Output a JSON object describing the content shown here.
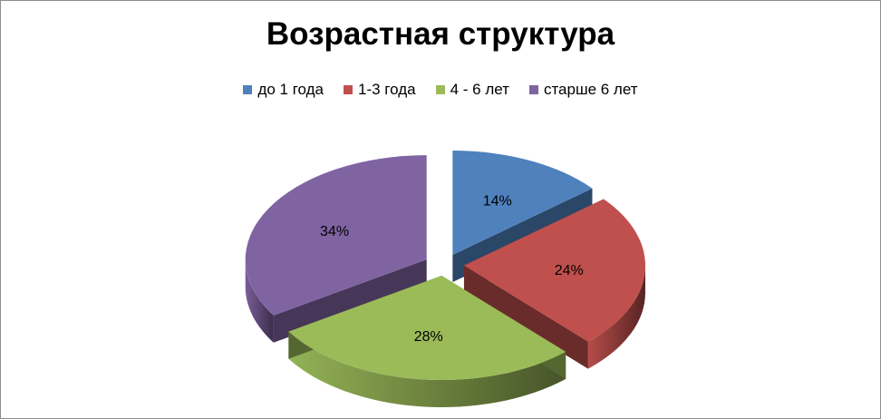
{
  "chart_data": {
    "type": "pie",
    "style": "3d-exploded",
    "title": "Возрастная структура",
    "legend_position": "top",
    "categories": [
      "до 1 года",
      "1-3 года",
      "4 - 6 лет",
      "старше 6 лет"
    ],
    "values": [
      14,
      24,
      28,
      34
    ],
    "labels": [
      "14%",
      "24%",
      "28%",
      "34%"
    ],
    "colors": [
      "#4F81BD",
      "#C0504D",
      "#9BBB59",
      "#8064A2"
    ]
  }
}
